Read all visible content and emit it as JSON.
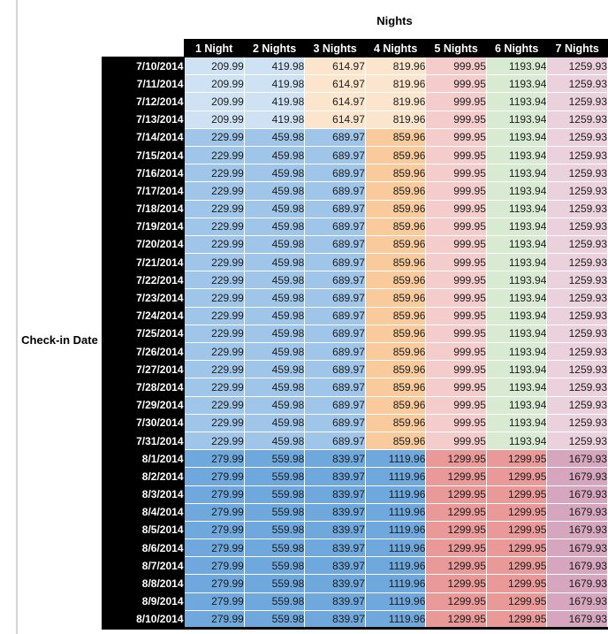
{
  "title": "Nights",
  "row_axis_label": "Check-in Date",
  "colors": {
    "header_bg": "#000000",
    "header_text": "#ffffff",
    "date_bg": "#000000",
    "date_text": "#ffffff",
    "value_text": "#1c1c1c",
    "tier_colors": {
      "low": [
        "#cfe2f3",
        "#cfe2f3",
        "#fce5cd",
        "#fce5cd",
        "#f4cccc",
        "#d9ead3",
        "#ead1dc"
      ],
      "mid": [
        "#9fc5e8",
        "#9fc5e8",
        "#9fc5e8",
        "#f9cb9c",
        "#f4cccc",
        "#d9ead3",
        "#ead1dc"
      ],
      "high": [
        "#6fa8dc",
        "#6fa8dc",
        "#6fa8dc",
        "#6fa8dc",
        "#ea9999",
        "#ea9999",
        "#d5a6bd"
      ]
    }
  },
  "chart_data": {
    "type": "table",
    "title": "Nights",
    "row_axis_label": "Check-in Date",
    "columns": [
      "1 Night",
      "2 Nights",
      "3 Nights",
      "4 Nights",
      "5 Nights",
      "6 Nights",
      "7 Nights"
    ],
    "tier_values": {
      "low": [
        209.99,
        419.98,
        614.97,
        819.96,
        999.95,
        1193.94,
        1259.93
      ],
      "mid": [
        229.99,
        459.98,
        689.97,
        859.96,
        999.95,
        1193.94,
        1259.93
      ],
      "high": [
        279.99,
        559.98,
        839.97,
        1119.96,
        1299.95,
        1299.95,
        1679.93
      ]
    },
    "rows": [
      {
        "date": "7/10/2014",
        "tier": "low"
      },
      {
        "date": "7/11/2014",
        "tier": "low"
      },
      {
        "date": "7/12/2014",
        "tier": "low"
      },
      {
        "date": "7/13/2014",
        "tier": "low"
      },
      {
        "date": "7/14/2014",
        "tier": "mid"
      },
      {
        "date": "7/15/2014",
        "tier": "mid"
      },
      {
        "date": "7/16/2014",
        "tier": "mid"
      },
      {
        "date": "7/17/2014",
        "tier": "mid"
      },
      {
        "date": "7/18/2014",
        "tier": "mid"
      },
      {
        "date": "7/19/2014",
        "tier": "mid"
      },
      {
        "date": "7/20/2014",
        "tier": "mid"
      },
      {
        "date": "7/21/2014",
        "tier": "mid"
      },
      {
        "date": "7/22/2014",
        "tier": "mid"
      },
      {
        "date": "7/23/2014",
        "tier": "mid"
      },
      {
        "date": "7/24/2014",
        "tier": "mid"
      },
      {
        "date": "7/25/2014",
        "tier": "mid"
      },
      {
        "date": "7/26/2014",
        "tier": "mid"
      },
      {
        "date": "7/27/2014",
        "tier": "mid"
      },
      {
        "date": "7/28/2014",
        "tier": "mid"
      },
      {
        "date": "7/29/2014",
        "tier": "mid"
      },
      {
        "date": "7/30/2014",
        "tier": "mid"
      },
      {
        "date": "7/31/2014",
        "tier": "mid"
      },
      {
        "date": "8/1/2014",
        "tier": "high"
      },
      {
        "date": "8/2/2014",
        "tier": "high"
      },
      {
        "date": "8/3/2014",
        "tier": "high"
      },
      {
        "date": "8/4/2014",
        "tier": "high"
      },
      {
        "date": "8/5/2014",
        "tier": "high"
      },
      {
        "date": "8/6/2014",
        "tier": "high"
      },
      {
        "date": "8/7/2014",
        "tier": "high"
      },
      {
        "date": "8/8/2014",
        "tier": "high"
      },
      {
        "date": "8/9/2014",
        "tier": "high"
      },
      {
        "date": "8/10/2014",
        "tier": "high"
      }
    ]
  }
}
